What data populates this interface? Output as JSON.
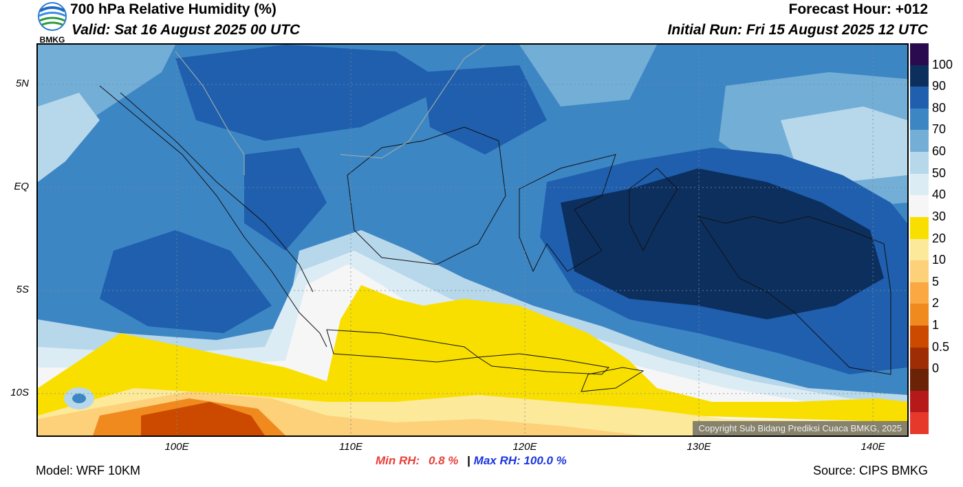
{
  "header": {
    "title": "700 hPa Relative Humidity (%)",
    "valid": "Valid: Sat 16 August 2025 00 UTC",
    "forecast_hour": "Forecast Hour: +012",
    "initial_run": "Initial Run: Fri 15 August 2025 12 UTC",
    "logo_text": "BMKG"
  },
  "map": {
    "lat_ticks": [
      "5N",
      "EQ",
      "5S",
      "10S"
    ],
    "lon_ticks": [
      "100E",
      "110E",
      "120E",
      "130E",
      "140E"
    ],
    "copyright": "Copyright Sub Bidang Prediksi Cuaca BMKG, 2025",
    "gridlines": true
  },
  "colorbar": {
    "labels": [
      "100",
      "90",
      "80",
      "70",
      "60",
      "50",
      "40",
      "30",
      "20",
      "10",
      "5",
      "2",
      "1",
      "0.5",
      "0"
    ],
    "colors": [
      "#2a0b4f",
      "#0d2f5e",
      "#1f5fae",
      "#3d86c4",
      "#73aed6",
      "#b7d7ea",
      "#dcecf4",
      "#f6f6f6",
      "#f9df00",
      "#fce99a",
      "#fdd07a",
      "#fba843",
      "#f08a1e",
      "#cc4a00",
      "#9e2c05",
      "#6b2307",
      "#b51919",
      "#e6392b"
    ]
  },
  "stats": {
    "min_label": "Min RH:",
    "min_value": "0.8 %",
    "separator": "|",
    "max_label": "Max RH:",
    "max_value": "100.0 %",
    "min_color": "#e8403a",
    "max_color": "#1a35e0"
  },
  "footer": {
    "model": "Model: WRF 10KM",
    "source": "Source: CIPS BMKG"
  }
}
